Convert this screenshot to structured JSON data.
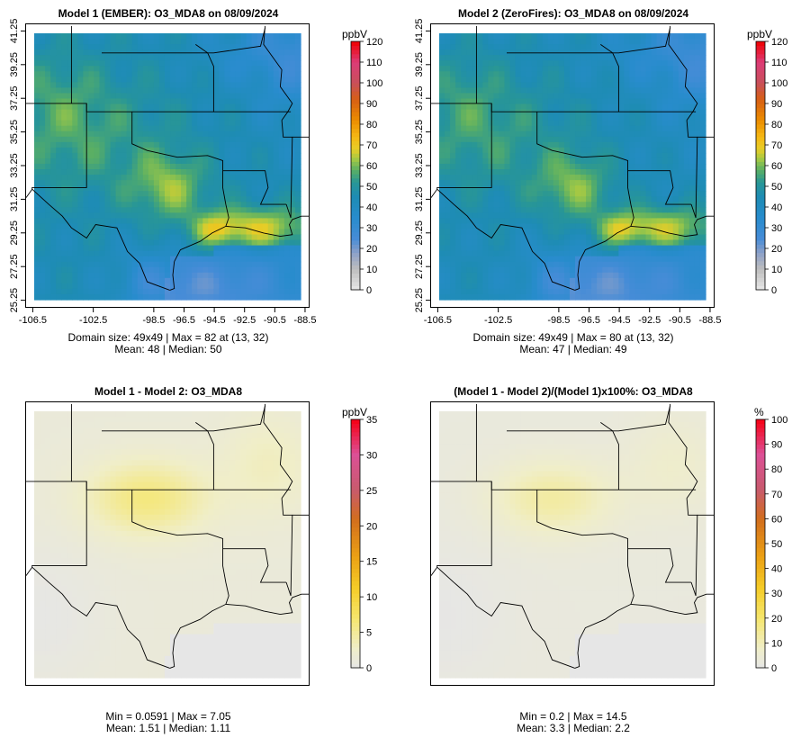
{
  "panels": [
    {
      "title": "Model 1 (EMBER): O3_MDA8 on 08/09/2024",
      "stats_line1": "Domain size: 49x49 | Max = 82 at (13, 32)",
      "stats_line2": "Mean: 48 |  Median: 50",
      "unit": "ppbV",
      "colorbar_ticks": [
        "0",
        "10",
        "20",
        "30",
        "40",
        "50",
        "60",
        "70",
        "80",
        "90",
        "100",
        "110",
        "120"
      ],
      "show_axes": true
    },
    {
      "title": "Model 2 (ZeroFires): O3_MDA8 on 08/09/2024",
      "stats_line1": "Domain size: 49x49 | Max = 80 at (13, 32)",
      "stats_line2": "Mean: 47 |  Median: 49",
      "unit": "ppbV",
      "colorbar_ticks": [
        "0",
        "10",
        "20",
        "30",
        "40",
        "50",
        "60",
        "70",
        "80",
        "90",
        "100",
        "110",
        "120"
      ],
      "show_axes": true
    },
    {
      "title": "Model 1 - Model 2: O3_MDA8",
      "stats_line1": "Min = 0.0591 | Max = 7.05",
      "stats_line2": "Mean: 1.51 |  Median: 1.11",
      "unit": "ppbV",
      "colorbar_ticks": [
        "0",
        "5",
        "10",
        "15",
        "20",
        "25",
        "30",
        "35"
      ],
      "show_axes": false
    },
    {
      "title": "(Model 1 - Model 2)/(Model 1)x100%: O3_MDA8",
      "stats_line1": "Min = 0.2 | Max = 14.5",
      "stats_line2": "Mean: 3.3 |  Median: 2.2",
      "unit": "%",
      "colorbar_ticks": [
        "0",
        "10",
        "20",
        "30",
        "40",
        "50",
        "60",
        "70",
        "80",
        "90",
        "100"
      ],
      "show_axes": false
    }
  ],
  "chart_data": [
    {
      "type": "heatmap",
      "title": "Model 1 (EMBER): O3_MDA8 on 08/09/2024",
      "x_ticks": [
        "-106.5",
        "-102.5",
        "-98.5",
        "-96.5",
        "-94.5",
        "-92.5",
        "-90.5",
        "-88.5"
      ],
      "y_ticks": [
        "25.25",
        "27.25",
        "29.25",
        "31.25",
        "33.25",
        "35.25",
        "37.25",
        "39.25",
        "41.25"
      ],
      "colorbar_range": [
        0,
        120
      ],
      "colorbar_label": "ppbV",
      "grid_size": "49x49",
      "max": 82,
      "max_cell": [
        13,
        32
      ],
      "mean": 48,
      "median": 50
    },
    {
      "type": "heatmap",
      "title": "Model 2 (ZeroFires): O3_MDA8 on 08/09/2024",
      "x_ticks": [
        "-106.5",
        "-102.5",
        "-98.5",
        "-96.5",
        "-94.5",
        "-92.5",
        "-90.5",
        "-88.5"
      ],
      "y_ticks": [
        "25.25",
        "27.25",
        "29.25",
        "31.25",
        "33.25",
        "35.25",
        "37.25",
        "39.25",
        "41.25"
      ],
      "colorbar_range": [
        0,
        120
      ],
      "colorbar_label": "ppbV",
      "grid_size": "49x49",
      "max": 80,
      "max_cell": [
        13,
        32
      ],
      "mean": 47,
      "median": 49
    },
    {
      "type": "heatmap",
      "title": "Model 1 - Model 2: O3_MDA8",
      "colorbar_range": [
        0,
        35
      ],
      "colorbar_label": "ppbV",
      "min": 0.0591,
      "max": 7.05,
      "mean": 1.51,
      "median": 1.11
    },
    {
      "type": "heatmap",
      "title": "(Model 1 - Model 2)/(Model 1)x100%: O3_MDA8",
      "colorbar_range": [
        0,
        100
      ],
      "colorbar_label": "%",
      "min": 0.2,
      "max": 14.5,
      "mean": 3.3,
      "median": 2.2
    }
  ],
  "axes": {
    "x_ticks": [
      "-106.5",
      "-102.5",
      "-98.5",
      "-96.5",
      "-94.5",
      "-92.5",
      "-90.5",
      "-88.5"
    ],
    "y_ticks": [
      "25.25",
      "27.25",
      "29.25",
      "31.25",
      "33.25",
      "35.25",
      "37.25",
      "39.25",
      "41.25"
    ]
  }
}
